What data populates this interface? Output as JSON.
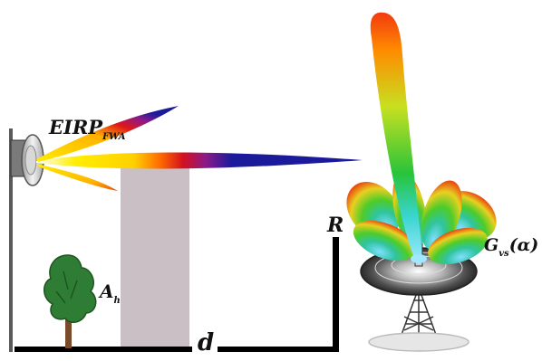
{
  "labels": {
    "eirp_main": "EIRP",
    "eirp_sub": "FWA",
    "ah_main": "A",
    "ah_sub": "h",
    "d": "d",
    "r": "R",
    "gvs_main": "G",
    "gvs_sub": "vs",
    "gvs_arg": "(α)"
  },
  "colors": {
    "beam_yellow": "#ffee00",
    "beam_red": "#e01818",
    "beam_blue": "#1a1a9a",
    "building": "#c9bfc4",
    "ground_line": "#000000",
    "tree_green": "#2f7d34",
    "trunk": "#7a4b2a"
  }
}
